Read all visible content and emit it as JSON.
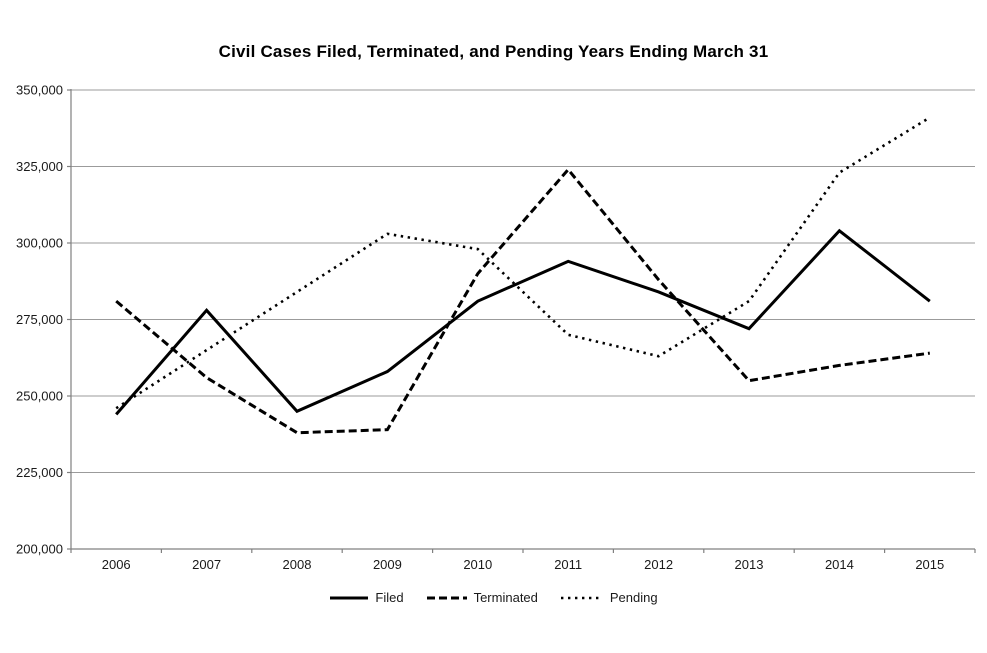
{
  "chart_data": {
    "type": "line",
    "title": "Civil Cases Filed, Terminated, and Pending Years Ending March 31",
    "categories": [
      "2006",
      "2007",
      "2008",
      "2009",
      "2010",
      "2011",
      "2012",
      "2013",
      "2014",
      "2015"
    ],
    "series": [
      {
        "name": "Filed",
        "line_style": "solid",
        "values": [
          244000,
          278000,
          245000,
          258000,
          281000,
          294000,
          284000,
          272000,
          304000,
          281000
        ]
      },
      {
        "name": "Terminated",
        "line_style": "dashed",
        "values": [
          281000,
          256000,
          238000,
          239000,
          290000,
          324000,
          288000,
          255000,
          260000,
          264000
        ]
      },
      {
        "name": "Pending",
        "line_style": "dotted",
        "values": [
          246000,
          265000,
          284000,
          303000,
          298000,
          270000,
          263000,
          281000,
          323000,
          341000
        ]
      }
    ],
    "xlabel": "",
    "ylabel": "",
    "ylim": [
      200000,
      350000
    ],
    "ytick_step": 25000,
    "ytick_labels": [
      "200,000",
      "225,000",
      "250,000",
      "275,000",
      "300,000",
      "325,000",
      "350,000"
    ],
    "grid": true,
    "legend_position": "bottom",
    "colors": {
      "line": "#000000",
      "grid": "#9b9b9b",
      "axis": "#808080",
      "text": "#1a1a1a"
    }
  }
}
